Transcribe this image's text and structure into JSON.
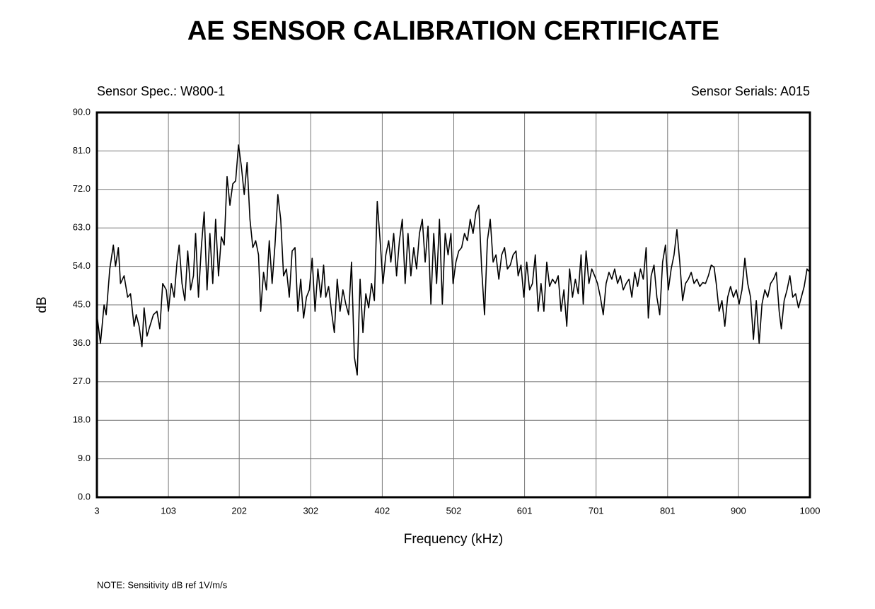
{
  "chart_data": {
    "type": "line",
    "title": "AE SENSOR CALIBRATION CERTIFICATE",
    "annotations": [
      "Sensor Spec.: W800-1",
      "Sensor Serials: A015",
      "NOTE:  Sensitivity dB ref 1V/m/s"
    ],
    "xlabel": "Frequency (kHz)",
    "ylabel": "dB",
    "xlim": [
      3,
      1000
    ],
    "ylim": [
      0,
      90
    ],
    "xticks": [
      3,
      103,
      202,
      302,
      402,
      502,
      601,
      701,
      801,
      900,
      1000
    ],
    "yticks": [
      {
        "value": 0,
        "label": "0.0"
      },
      {
        "value": 9,
        "label": "9.0"
      },
      {
        "value": 18,
        "label": "18.0"
      },
      {
        "value": 27,
        "label": "27.0"
      },
      {
        "value": 36,
        "label": "36.0"
      },
      {
        "value": 45,
        "label": "45.0"
      },
      {
        "value": 54,
        "label": "54.0"
      },
      {
        "value": 63,
        "label": "63.0"
      },
      {
        "value": 72,
        "label": "72.0"
      },
      {
        "value": 81,
        "label": "81.0"
      },
      {
        "value": 90,
        "label": "90.0"
      }
    ],
    "grid": true,
    "color": "#000000",
    "x": [
      3,
      8,
      13,
      16,
      21,
      26,
      29,
      33,
      36,
      41,
      46,
      50,
      55,
      58,
      62,
      66,
      69,
      73,
      77,
      82,
      87,
      91,
      95,
      100,
      103,
      107,
      111,
      115,
      118,
      122,
      126,
      130,
      134,
      138,
      141,
      145,
      149,
      153,
      157,
      161,
      165,
      169,
      173,
      177,
      181,
      185,
      189,
      193,
      197,
      201,
      205,
      209,
      213,
      217,
      221,
      225,
      229,
      232,
      236,
      240,
      244,
      248,
      252,
      256,
      260,
      264,
      268,
      272,
      276,
      280,
      284,
      288,
      292,
      296,
      300,
      304,
      308,
      312,
      316,
      320,
      323,
      327,
      331,
      335,
      339,
      343,
      347,
      351,
      355,
      359,
      363,
      367,
      371,
      375,
      379,
      383,
      387,
      391,
      395,
      399,
      403,
      407,
      411,
      414,
      418,
      422,
      426,
      430,
      434,
      438,
      442,
      446,
      450,
      454,
      458,
      462,
      466,
      470,
      474,
      478,
      482,
      486,
      490,
      494,
      498,
      501,
      505,
      509,
      513,
      517,
      521,
      525,
      529,
      533,
      537,
      541,
      545,
      549,
      553,
      557,
      561,
      565,
      569,
      573,
      577,
      581,
      585,
      589,
      592,
      596,
      600,
      604,
      608,
      612,
      616,
      620,
      624,
      628,
      632,
      636,
      640,
      644,
      648,
      652,
      656,
      660,
      664,
      668,
      672,
      676,
      680,
      683,
      687,
      691,
      695,
      699,
      703,
      707,
      711,
      715,
      719,
      723,
      727,
      731,
      735,
      739,
      743,
      747,
      751,
      755,
      759,
      763,
      767,
      771,
      774,
      778,
      782,
      786,
      790,
      794,
      798,
      802,
      806,
      810,
      814,
      818,
      822,
      826,
      830,
      834,
      838,
      842,
      846,
      850,
      854,
      858,
      862,
      866,
      869,
      873,
      877,
      881,
      885,
      889,
      893,
      897,
      901,
      905,
      909,
      913,
      917,
      921,
      925,
      929,
      933,
      937,
      941,
      945,
      949,
      953,
      957,
      960,
      964,
      968,
      972,
      976,
      980,
      984,
      988,
      992,
      996,
      1000
    ],
    "values": [
      42.7,
      36,
      45,
      42.7,
      53.4,
      59,
      54,
      58.4,
      50,
      51.8,
      46.8,
      47.6,
      40,
      42.7,
      40,
      35.2,
      44.3,
      37.7,
      40,
      42.7,
      43.5,
      39.4,
      50,
      48.5,
      43.5,
      50,
      46.8,
      55,
      59,
      50,
      46,
      57.6,
      48.5,
      51.8,
      61.7,
      46.8,
      58.4,
      66.7,
      48.5,
      61.7,
      50,
      65,
      51.8,
      60.9,
      59,
      75,
      68.3,
      73.3,
      74,
      82.4,
      77.4,
      70.8,
      78.3,
      65,
      58.4,
      60,
      56.7,
      43.5,
      52.6,
      48.5,
      60,
      50,
      59,
      70.8,
      65,
      51.8,
      53.4,
      46.8,
      57.6,
      58.4,
      43.5,
      51,
      41.9,
      46.8,
      48.5,
      55.9,
      43.5,
      53.4,
      46.8,
      54.3,
      46.8,
      49.3,
      43.5,
      38.5,
      51,
      43.5,
      48.5,
      45.2,
      42.7,
      55,
      32.8,
      28.6,
      51,
      38.5,
      47.6,
      44.3,
      50,
      46,
      69.2,
      60,
      50,
      56.7,
      60,
      55,
      61.7,
      51.8,
      60,
      65,
      50,
      61.7,
      51.8,
      58.4,
      53.4,
      61.7,
      65,
      55,
      63.4,
      45.2,
      61.7,
      50,
      65,
      45.2,
      61.7,
      56.7,
      61.7,
      50,
      55,
      57.6,
      58.4,
      61.7,
      60,
      65,
      61.7,
      66.7,
      68.3,
      53.4,
      42.7,
      60,
      65,
      55,
      56.7,
      51,
      56.7,
      58.4,
      53.4,
      54.3,
      56.7,
      57.6,
      51.8,
      54.3,
      46.8,
      55,
      48.5,
      50,
      56.7,
      43.5,
      50,
      43.5,
      55,
      49.3,
      51,
      50,
      51.8,
      43.5,
      48.5,
      40,
      53.4,
      46.8,
      51,
      47.6,
      56.7,
      45.2,
      57.6,
      50,
      53.4,
      51.8,
      50,
      46.8,
      42.7,
      50,
      52.6,
      51,
      53.4,
      50,
      51.8,
      48.5,
      50,
      51,
      46.8,
      52.6,
      49.3,
      53.4,
      51,
      58.4,
      41.9,
      51.8,
      54.3,
      46.8,
      42.7,
      55,
      59,
      48.5,
      53.4,
      56.7,
      62.6,
      55,
      46,
      50,
      51,
      52.6,
      50,
      51,
      49.3,
      50.2,
      50,
      51.8,
      54.3,
      53.8,
      50,
      43.5,
      46,
      40,
      46.8,
      49.3,
      46.8,
      48.5,
      45.2,
      48.5,
      55.9,
      50,
      46.8,
      36.9,
      46,
      36,
      45.2,
      48.5,
      46.8,
      50,
      51,
      52.6,
      43.5,
      39.4,
      46,
      48.5,
      51.8,
      46.8,
      47.6,
      44.3,
      46.8,
      49.3,
      53.4,
      52.6
    ]
  }
}
